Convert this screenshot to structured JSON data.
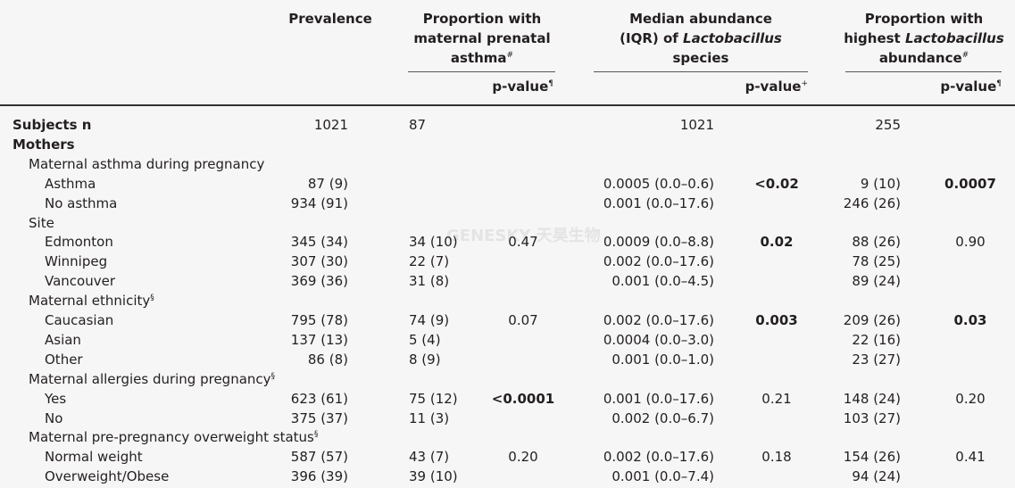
{
  "header": {
    "prevalence": "Prevalence",
    "asthma": {
      "l1": "Proportion with",
      "l2": "maternal prenatal",
      "l3": "asthma",
      "sup": "#"
    },
    "abundance": {
      "l1": "Median abundance",
      "l2a": "(IQR) of ",
      "l2b": "Lactobacillus",
      "l3": "species"
    },
    "highest": {
      "l1": "Proportion with",
      "l2a": "highest ",
      "l2b": "Lactobacillus",
      "l3": "abundance",
      "sup": "#"
    },
    "pvalue": "p-value",
    "pvalue_sup_asthma": "¶",
    "pvalue_sup_abund": "+",
    "pvalue_sup_highest": "¶"
  },
  "watermark": "GENESKY 天昊生物",
  "rows": [
    {
      "label": "Subjects n",
      "indent": 0,
      "bold": true,
      "prev": "1021",
      "asthma": "87",
      "asthma_p": "",
      "abund": "1021",
      "abund_p": "",
      "high": "255",
      "high_p": ""
    },
    {
      "label": "Mothers",
      "indent": 0,
      "bold": true,
      "prev": "",
      "asthma": "",
      "asthma_p": "",
      "abund": "",
      "abund_p": "",
      "high": "",
      "high_p": ""
    },
    {
      "label": "Maternal asthma during pregnancy",
      "indent": 1,
      "prev": "",
      "asthma": "",
      "asthma_p": "",
      "abund": "",
      "abund_p": "",
      "high": "",
      "high_p": ""
    },
    {
      "label": "Asthma",
      "indent": 2,
      "prev": "87 (9)",
      "asthma": "",
      "asthma_p": "",
      "abund": "0.0005 (0.0–0.6)",
      "abund_p": "<0.02",
      "abund_p_bold": true,
      "high": "9 (10)",
      "high_p": "0.0007",
      "high_p_bold": true
    },
    {
      "label": "No asthma",
      "indent": 2,
      "prev": "934 (91)",
      "asthma": "",
      "asthma_p": "",
      "abund": "0.001 (0.0–17.6)",
      "abund_p": "",
      "high": "246 (26)",
      "high_p": ""
    },
    {
      "label": "Site",
      "indent": 1,
      "prev": "",
      "asthma": "",
      "asthma_p": "",
      "abund": "",
      "abund_p": "",
      "high": "",
      "high_p": ""
    },
    {
      "label": "Edmonton",
      "indent": 2,
      "prev": "345 (34)",
      "asthma": "34 (10)",
      "asthma_p": "0.47",
      "abund": "0.0009 (0.0–8.8)",
      "abund_p": "0.02",
      "abund_p_bold": true,
      "high": "88 (26)",
      "high_p": "0.90"
    },
    {
      "label": "Winnipeg",
      "indent": 2,
      "prev": "307 (30)",
      "asthma": "22 (7)",
      "asthma_p": "",
      "abund": "0.002 (0.0–17.6)",
      "abund_p": "",
      "high": "78 (25)",
      "high_p": ""
    },
    {
      "label": "Vancouver",
      "indent": 2,
      "prev": "369 (36)",
      "asthma": "31 (8)",
      "asthma_p": "",
      "abund": "0.001 (0.0–4.5)",
      "abund_p": "",
      "high": "89 (24)",
      "high_p": ""
    },
    {
      "label": "Maternal ethnicity",
      "label_sup": "§",
      "indent": 1,
      "prev": "",
      "asthma": "",
      "asthma_p": "",
      "abund": "",
      "abund_p": "",
      "high": "",
      "high_p": ""
    },
    {
      "label": "Caucasian",
      "indent": 2,
      "prev": "795 (78)",
      "asthma": "74 (9)",
      "asthma_p": "0.07",
      "abund": "0.002 (0.0–17.6)",
      "abund_p": "0.003",
      "abund_p_bold": true,
      "high": "209 (26)",
      "high_p": "0.03",
      "high_p_bold": true
    },
    {
      "label": "Asian",
      "indent": 2,
      "prev": "137 (13)",
      "asthma": "5 (4)",
      "asthma_p": "",
      "abund": "0.0004 (0.0–3.0)",
      "abund_p": "",
      "high": "22 (16)",
      "high_p": ""
    },
    {
      "label": "Other",
      "indent": 2,
      "prev": "86 (8)",
      "asthma": "8 (9)",
      "asthma_p": "",
      "abund": "0.001 (0.0–1.0)",
      "abund_p": "",
      "high": "23 (27)",
      "high_p": ""
    },
    {
      "label": "Maternal allergies during pregnancy",
      "label_sup": "§",
      "indent": 1,
      "prev": "",
      "asthma": "",
      "asthma_p": "",
      "abund": "",
      "abund_p": "",
      "high": "",
      "high_p": ""
    },
    {
      "label": "Yes",
      "indent": 2,
      "prev": "623 (61)",
      "asthma": "75 (12)",
      "asthma_p": "<0.0001",
      "asthma_p_bold": true,
      "abund": "0.001 (0.0–17.6)",
      "abund_p": "0.21",
      "high": "148 (24)",
      "high_p": "0.20"
    },
    {
      "label": "No",
      "indent": 2,
      "prev": "375 (37)",
      "asthma": "11 (3)",
      "asthma_p": "",
      "abund": "0.002 (0.0–6.7)",
      "abund_p": "",
      "high": "103 (27)",
      "high_p": ""
    },
    {
      "label": "Maternal pre-pregnancy overweight status",
      "label_sup": "§",
      "indent": 1,
      "prev": "",
      "asthma": "",
      "asthma_p": "",
      "abund": "",
      "abund_p": "",
      "high": "",
      "high_p": ""
    },
    {
      "label": "Normal weight",
      "indent": 2,
      "prev": "587 (57)",
      "asthma": "43 (7)",
      "asthma_p": "0.20",
      "abund": "0.002 (0.0–17.6)",
      "abund_p": "0.18",
      "high": "154 (26)",
      "high_p": "0.41"
    },
    {
      "label": "Overweight/Obese",
      "indent": 2,
      "prev": "396 (39)",
      "asthma": "39 (10)",
      "asthma_p": "",
      "abund": "0.001 (0.0–7.4)",
      "abund_p": "",
      "high": "94 (24)",
      "high_p": ""
    }
  ]
}
